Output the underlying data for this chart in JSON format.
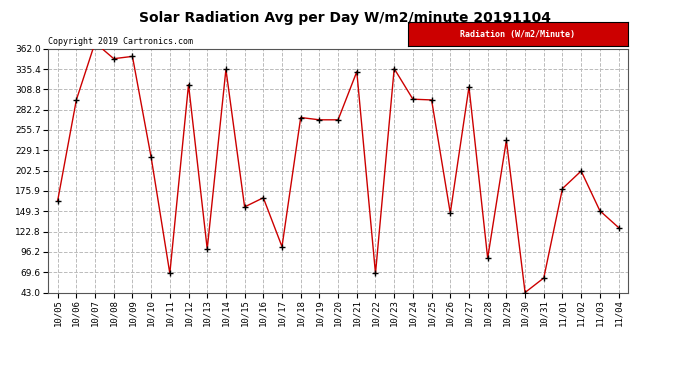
{
  "title": "Solar Radiation Avg per Day W/m2/minute 20191104",
  "copyright_text": "Copyright 2019 Cartronics.com",
  "legend_label": "Radiation (W/m2/Minute)",
  "dates": [
    "10/05",
    "10/06",
    "10/07",
    "10/08",
    "10/09",
    "10/10",
    "10/11",
    "10/12",
    "10/13",
    "10/14",
    "10/15",
    "10/16",
    "10/17",
    "10/18",
    "10/19",
    "10/20",
    "10/21",
    "10/22",
    "10/23",
    "10/24",
    "10/25",
    "10/26",
    "10/27",
    "10/28",
    "10/29",
    "10/30",
    "10/31",
    "11/01",
    "11/02",
    "11/03",
    "11/04"
  ],
  "values": [
    163.0,
    295.0,
    370.0,
    349.0,
    352.0,
    220.0,
    68.0,
    315.0,
    100.0,
    335.0,
    155.0,
    167.0,
    103.0,
    272.0,
    269.0,
    269.0,
    332.0,
    68.0,
    336.0,
    296.0,
    295.0,
    147.0,
    312.0,
    88.0,
    242.0,
    43.0,
    62.0,
    179.0,
    202.0,
    150.0,
    128.0
  ],
  "ylim_min": 43.0,
  "ylim_max": 362.0,
  "yticks": [
    43.0,
    69.6,
    96.2,
    122.8,
    149.3,
    175.9,
    202.5,
    229.1,
    255.7,
    282.2,
    308.8,
    335.4,
    362.0
  ],
  "line_color": "#cc0000",
  "marker": "+",
  "marker_color": "#000000",
  "marker_size": 5,
  "grid_color": "#bbbbbb",
  "grid_style": "--",
  "background_color": "#ffffff",
  "title_fontsize": 10,
  "tick_fontsize": 6.5,
  "legend_bg_color": "#cc0000",
  "legend_text_color": "#ffffff",
  "copyright_fontsize": 6,
  "copyright_color": "#000000"
}
